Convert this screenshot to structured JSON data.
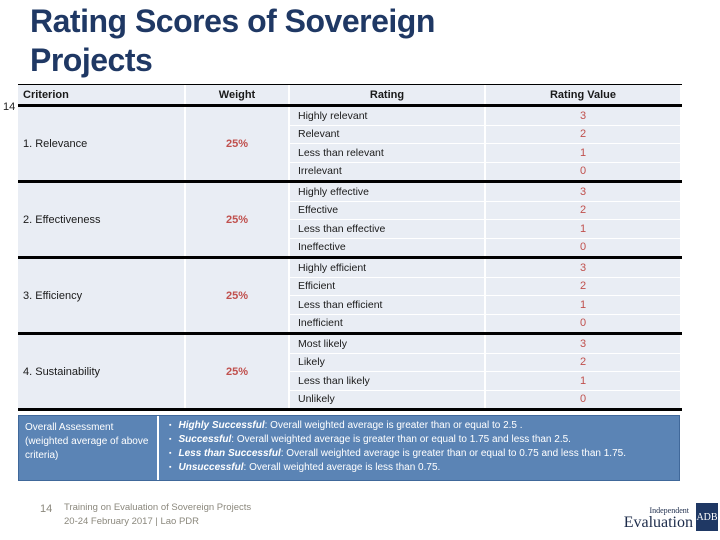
{
  "slide": {
    "title_line1": "Rating Scores of Sovereign",
    "title_line2": "Projects",
    "stray_page_number": "14"
  },
  "colors": {
    "title_navy": "#1f3864",
    "cell_background": "#e9edf4",
    "accent_red": "#c0504d",
    "overall_box_blue": "#5b84b5",
    "adb_box_navy": "#1f3864",
    "footer_gray": "#8b887d"
  },
  "table": {
    "headers": [
      "Criterion",
      "Weight",
      "Rating",
      "Rating Value"
    ],
    "groups": [
      {
        "criterion": "1. Relevance",
        "weight": "25%",
        "ratings": [
          {
            "label": "Highly relevant",
            "value": "3"
          },
          {
            "label": "Relevant",
            "value": "2"
          },
          {
            "label": "Less than relevant",
            "value": "1"
          },
          {
            "label": "Irrelevant",
            "value": "0"
          }
        ]
      },
      {
        "criterion": "2. Effectiveness",
        "weight": "25%",
        "ratings": [
          {
            "label": "Highly effective",
            "value": "3"
          },
          {
            "label": "Effective",
            "value": "2"
          },
          {
            "label": "Less than effective",
            "value": "1"
          },
          {
            "label": "Ineffective",
            "value": "0"
          }
        ]
      },
      {
        "criterion": "3. Efficiency",
        "weight": "25%",
        "ratings": [
          {
            "label": "Highly efficient",
            "value": "3"
          },
          {
            "label": "Efficient",
            "value": "2"
          },
          {
            "label": "Less than efficient",
            "value": "1"
          },
          {
            "label": "Inefficient",
            "value": "0"
          }
        ]
      },
      {
        "criterion": "4. Sustainability",
        "weight": "25%",
        "ratings": [
          {
            "label": "Most likely",
            "value": "3"
          },
          {
            "label": "Likely",
            "value": "2"
          },
          {
            "label": "Less than likely",
            "value": "1"
          },
          {
            "label": "Unlikely",
            "value": "0"
          }
        ]
      }
    ]
  },
  "overall": {
    "label": "Overall Assessment (weighted average of above criteria)",
    "bullet_glyph": "▪",
    "bullets": [
      {
        "term": "Highly Successful",
        "rest": ": Overall weighted average is greater than or equal to 2.5 ."
      },
      {
        "term": "Successful",
        "rest": ": Overall weighted average is greater than or equal to 1.75 and less than 2.5."
      },
      {
        "term": "Less than Successful",
        "rest": ": Overall weighted average is greater than or equal to 0.75 and less than 1.75."
      },
      {
        "term": "Unsuccessful",
        "rest": ": Overall weighted average is less than 0.75."
      }
    ]
  },
  "footer": {
    "page_number": "14",
    "line1": "Training on Evaluation of Sovereign Projects",
    "line2": "20-24 February 2017 | Lao PDR"
  },
  "logo": {
    "small": "Independent",
    "big": "Evaluation",
    "box": "ADB"
  }
}
